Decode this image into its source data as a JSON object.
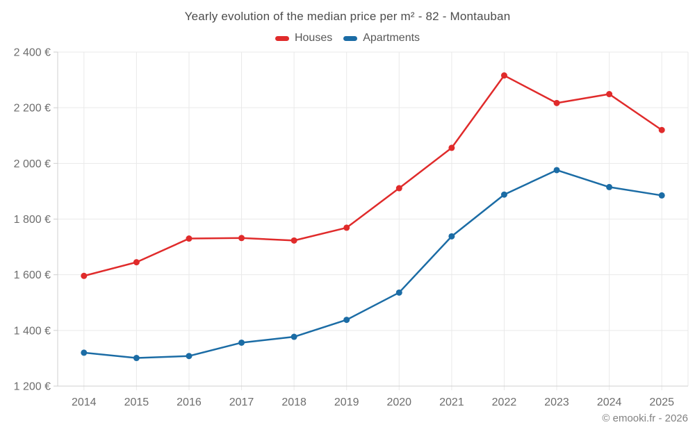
{
  "header": {
    "title": "Yearly evolution of the median price per m² - 82 - Montauban"
  },
  "legend": {
    "items": [
      {
        "label": "Houses",
        "color": "#e02b2b"
      },
      {
        "label": "Apartments",
        "color": "#1b6ca5"
      }
    ]
  },
  "footer": {
    "credit": "© emooki.fr - 2026"
  },
  "chart_data": {
    "type": "line",
    "title": "Yearly evolution of the median price per m² - 82 - Montauban",
    "categories": [
      "2014",
      "2015",
      "2016",
      "2017",
      "2018",
      "2019",
      "2020",
      "2021",
      "2022",
      "2023",
      "2024",
      "2025"
    ],
    "series": [
      {
        "name": "Houses",
        "color": "#e02b2b",
        "values": [
          1596,
          1645,
          1730,
          1732,
          1723,
          1769,
          1911,
          2056,
          2316,
          2217,
          2249,
          2120
        ]
      },
      {
        "name": "Apartments",
        "color": "#1b6ca5",
        "values": [
          1320,
          1301,
          1308,
          1356,
          1377,
          1438,
          1536,
          1738,
          1888,
          1976,
          1915,
          1885
        ]
      }
    ],
    "xlabel": "",
    "ylabel": "",
    "ylim": [
      1200,
      2400
    ],
    "y_ticks": [
      {
        "value": 1200,
        "label": "1 200 €"
      },
      {
        "value": 1400,
        "label": "1 400 €"
      },
      {
        "value": 1600,
        "label": "1 600 €"
      },
      {
        "value": 1800,
        "label": "1 800 €"
      },
      {
        "value": 2000,
        "label": "2 000 €"
      },
      {
        "value": 2200,
        "label": "2 200 €"
      },
      {
        "value": 2400,
        "label": "2 400 €"
      }
    ],
    "grid": true,
    "legend_position": "top",
    "marker": "circle"
  }
}
